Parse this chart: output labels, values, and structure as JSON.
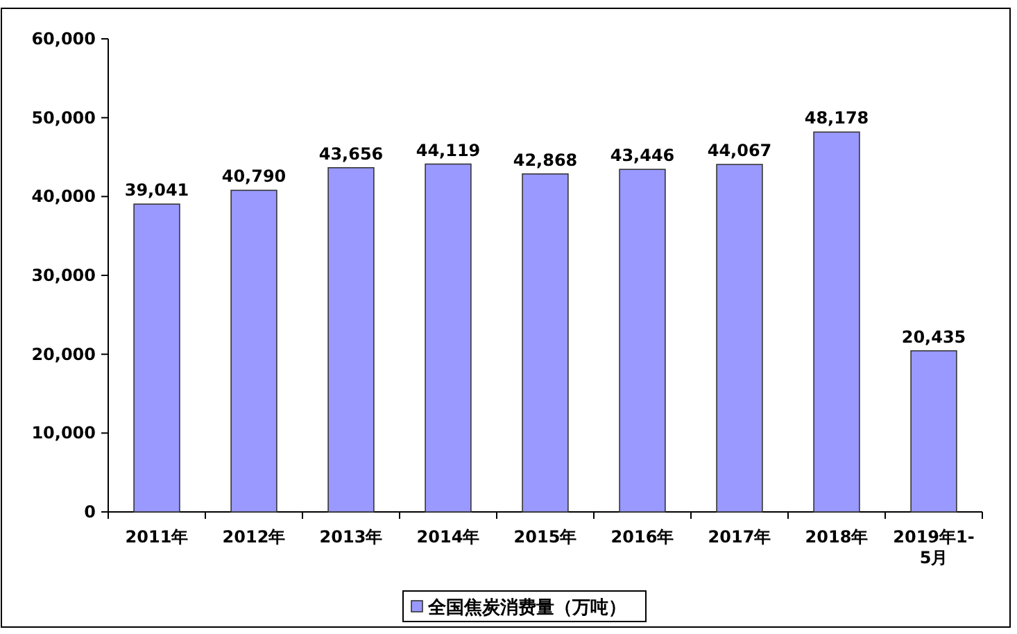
{
  "chart_data": {
    "type": "bar",
    "categories": [
      "2011年",
      "2012年",
      "2013年",
      "2014年",
      "2015年",
      "2016年",
      "2017年",
      "2018年",
      "2019年1-5月"
    ],
    "series": [
      {
        "name": "全国焦炭消费量（万吨）",
        "color": "#9999ff",
        "values": [
          39041,
          40790,
          43656,
          44119,
          42868,
          43446,
          44067,
          48178,
          20435
        ],
        "value_labels": [
          "39,041",
          "40,790",
          "43,656",
          "44,119",
          "42,868",
          "43,446",
          "44,067",
          "48,178",
          "20,435"
        ]
      }
    ],
    "ylim": [
      0,
      60000
    ],
    "yticks": [
      {
        "value": 0,
        "label": "0"
      },
      {
        "value": 10000,
        "label": "10,000"
      },
      {
        "value": 20000,
        "label": "20,000"
      },
      {
        "value": 30000,
        "label": "30,000"
      },
      {
        "value": 40000,
        "label": "40,000"
      },
      {
        "value": 50000,
        "label": "50,000"
      },
      {
        "value": 60000,
        "label": "60,000"
      }
    ],
    "grid": false,
    "legend": "bottom"
  }
}
